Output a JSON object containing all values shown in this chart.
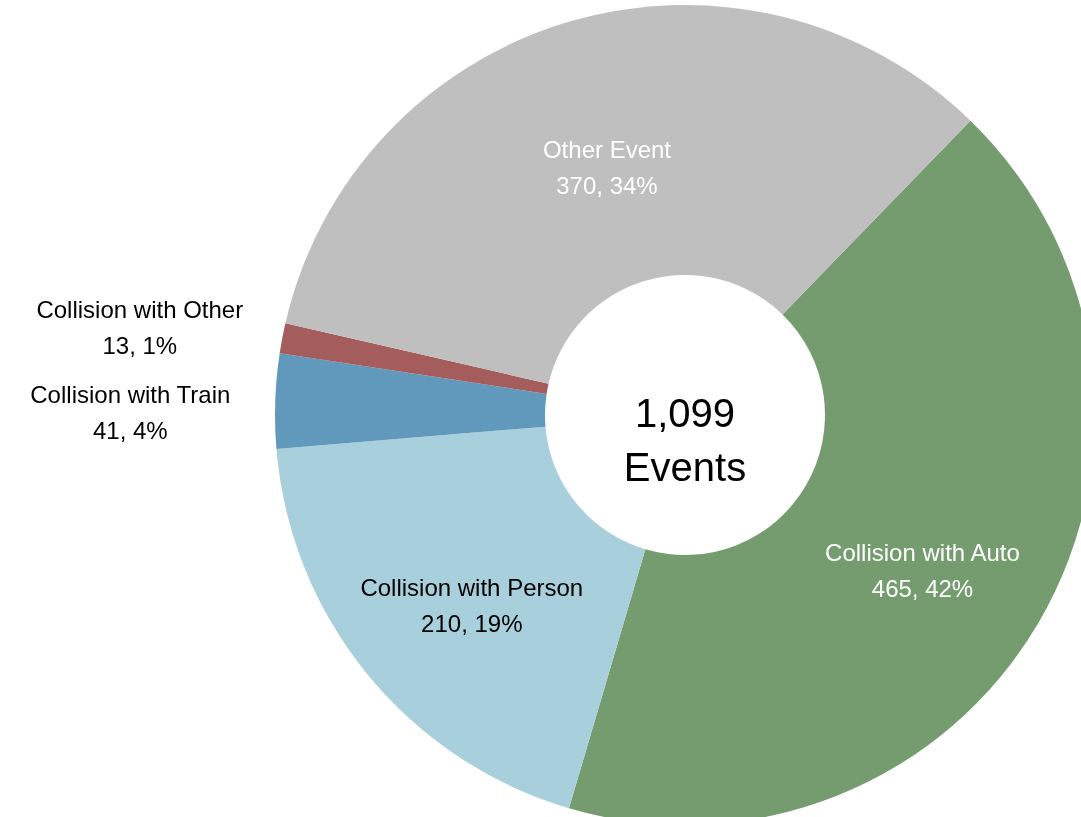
{
  "chart_data": {
    "type": "donut",
    "categories": [
      "Collision with Auto",
      "Collision with Person",
      "Collision with Train",
      "Collision with Other",
      "Other Event"
    ],
    "values": [
      465,
      210,
      41,
      13,
      370
    ],
    "colors": [
      "#759c6f",
      "#a8d0dc",
      "#6099bb",
      "#a45c5c",
      "#bfbfbf"
    ],
    "value_labels": [
      "465, 42%",
      "210, 19%",
      "41, 4%",
      "13, 1%",
      "370, 34%"
    ],
    "annotations": [
      "1,099 Events"
    ]
  }
}
